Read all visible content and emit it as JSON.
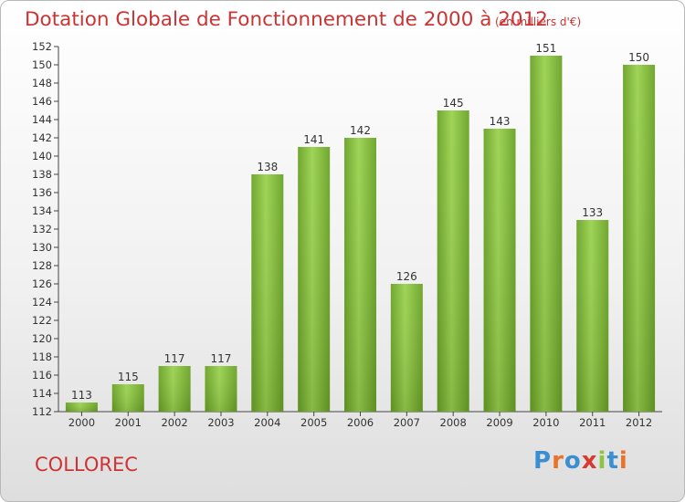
{
  "chart_data": {
    "type": "bar",
    "title": "Dotation Globale de Fonctionnement de 2000 à 2012",
    "subtitle": "(en milliers d'€)",
    "categories": [
      "2000",
      "2001",
      "2002",
      "2003",
      "2004",
      "2005",
      "2006",
      "2007",
      "2008",
      "2009",
      "2010",
      "2011",
      "2012"
    ],
    "values": [
      113,
      115,
      117,
      117,
      138,
      141,
      142,
      126,
      145,
      143,
      151,
      133,
      150
    ],
    "ylim": [
      112,
      152
    ],
    "ytick_step": 2,
    "grid": false,
    "bar_color": "#7cb833",
    "label_color": "#333333"
  },
  "footer": {
    "place": "COLLOREC",
    "logo": "Proxiti",
    "logo_colors": [
      "#3a8fd0",
      "#e8732a",
      "#3a8fd0",
      "#d63b2f",
      "#8cc63f",
      "#3a8fd0",
      "#e8732a"
    ]
  }
}
